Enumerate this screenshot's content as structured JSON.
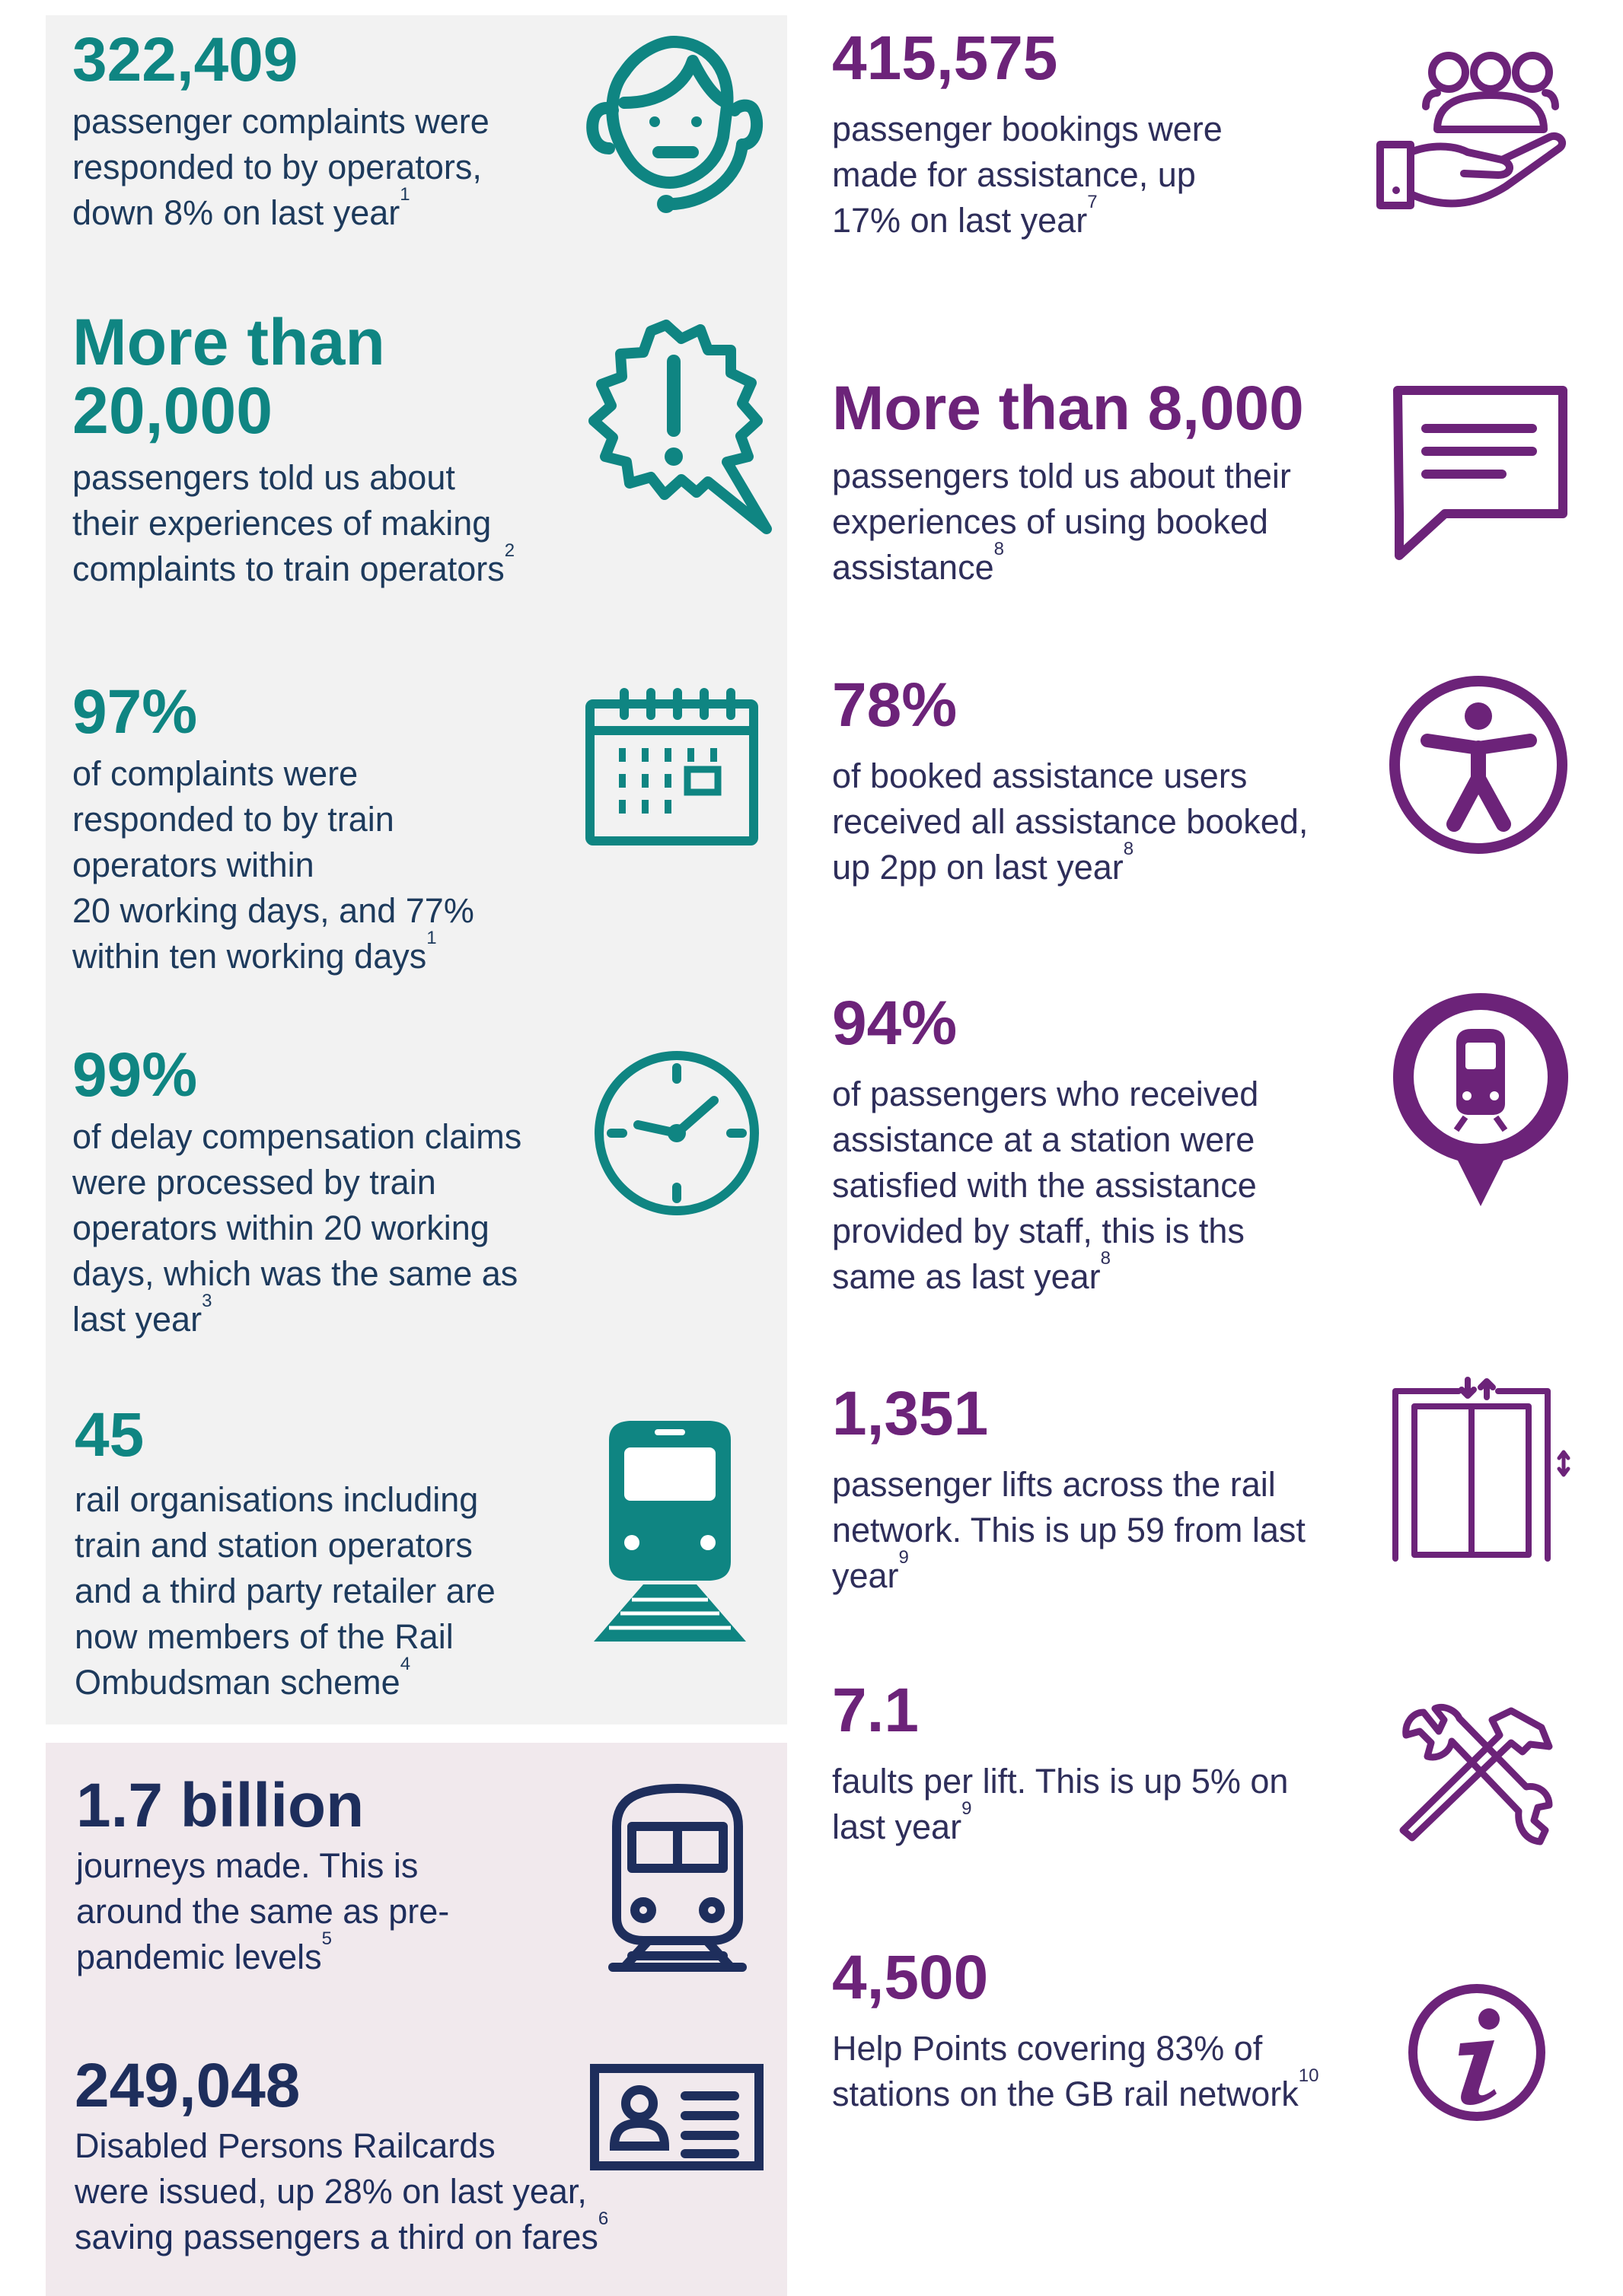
{
  "colors": {
    "teal": "#0f8582",
    "purple": "#6c2379",
    "navy": "#1e2e5c",
    "grey_panel": "#f2f2f2",
    "pink_panel": "#f1e9ed"
  },
  "left": [
    {
      "num": "322,409",
      "text": "passenger complaints were\nresponded to by operators,\ndown 8% on last year",
      "note": "1",
      "icon": "headset-agent-icon"
    },
    {
      "num": "More than\n20,000",
      "text": "passengers told us about\ntheir experiences of making\ncomplaints to train operators",
      "note": "2",
      "icon": "exclamation-speech-icon"
    },
    {
      "num": "97%",
      "text": "of complaints were\nresponded to by train\noperators within\n20 working days, and 77%\nwithin ten working days",
      "note": "1",
      "icon": "calendar-icon"
    },
    {
      "num": "99%",
      "text": "of delay compensation claims\nwere processed by train\noperators within 20 working\ndays, which was the same as\nlast year",
      "note": "3",
      "icon": "clock-icon"
    },
    {
      "num": "45",
      "text": "rail organisations including\ntrain and station operators\nand a third party retailer are\nnow members of the Rail\nOmbudsman scheme",
      "note": "4",
      "icon": "train-on-tracks-icon"
    }
  ],
  "bottom": [
    {
      "num": "1.7 billion",
      "text": "journeys made. This is\naround the same as pre-\npandemic levels",
      "note": "5",
      "icon": "train-front-icon"
    },
    {
      "num": "249,048",
      "text": "Disabled Persons Railcards\nwere issued, up 28% on last year,\nsaving passengers a third on fares",
      "note": "6",
      "icon": "id-card-icon"
    }
  ],
  "right": [
    {
      "num": "415,575",
      "text": "passenger bookings were\nmade for assistance, up\n17% on last year",
      "note": "7",
      "icon": "hand-with-people-icon"
    },
    {
      "num": "More than 8,000",
      "text": "passengers told us about their\nexperiences of using booked\nassistance",
      "note": "8",
      "icon": "speech-bubble-icon"
    },
    {
      "num": "78%",
      "text": "of booked assistance users\nreceived all assistance booked,\nup 2pp on last year",
      "note": "8",
      "icon": "accessibility-icon"
    },
    {
      "num": "94%",
      "text": "of passengers who received\nassistance at a station were\nsatisfied with the assistance\nprovided by staff, this is ths\nsame as last year",
      "note": "8",
      "icon": "station-pin-icon"
    },
    {
      "num": "1,351",
      "text": "passenger lifts across the rail\nnetwork. This is up 59 from last\nyear",
      "note": "9",
      "icon": "lift-icon"
    },
    {
      "num": "7.1",
      "text": "faults per lift. This is up 5% on\nlast year",
      "note": "9",
      "icon": "tools-icon"
    },
    {
      "num": "4,500",
      "text": "Help Points covering 83% of\nstations on the GB rail network",
      "note": "10",
      "icon": "info-icon"
    }
  ]
}
